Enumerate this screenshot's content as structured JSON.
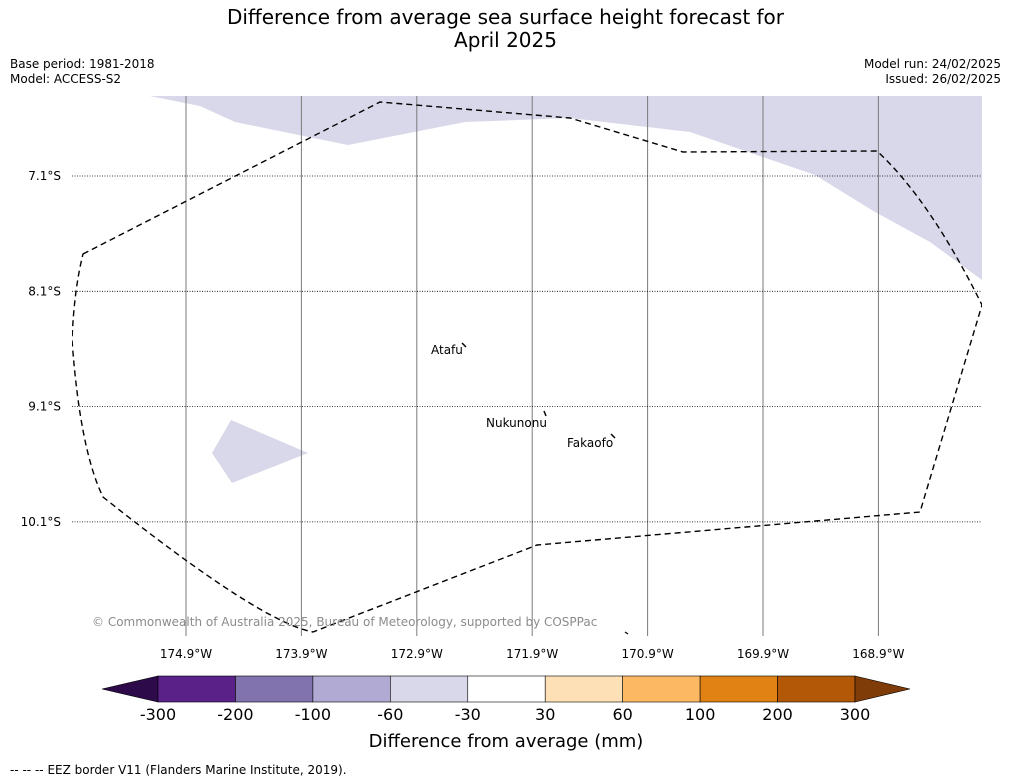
{
  "title": {
    "line1": "Difference from average sea surface height forecast for",
    "line2": "April 2025"
  },
  "meta": {
    "base_period": "Base period: 1981-2018",
    "model": "Model: ACCESS-S2",
    "model_run": "Model run: 24/02/2025",
    "issued": "Issued: 26/02/2025"
  },
  "map": {
    "latitudes": [
      {
        "label": "7.1°S",
        "value": -7.1
      },
      {
        "label": "8.1°S",
        "value": -8.1
      },
      {
        "label": "9.1°S",
        "value": -9.1
      },
      {
        "label": "10.1°S",
        "value": -10.1
      }
    ],
    "longitudes": [
      {
        "label": "174.9°W",
        "value": -174.9
      },
      {
        "label": "173.9°W",
        "value": -173.9
      },
      {
        "label": "172.9°W",
        "value": -172.9
      },
      {
        "label": "171.9°W",
        "value": -171.9
      },
      {
        "label": "170.9°W",
        "value": -170.9
      },
      {
        "label": "169.9°W",
        "value": -169.9
      },
      {
        "label": "168.9°W",
        "value": -168.9
      }
    ],
    "places": [
      {
        "name": "Atafu"
      },
      {
        "name": "Nukunonu"
      },
      {
        "name": "Fakaofo"
      }
    ],
    "copyright": "© Commonwealth of Australia 2025, Bureau of Meteorology, supported by COSPPac",
    "anomaly_fill_color": "#d8d8ea"
  },
  "colorbar": {
    "title": "Difference from average (mm)",
    "ticks": [
      "-300",
      "-200",
      "-100",
      "-60",
      "-30",
      "30",
      "60",
      "100",
      "200",
      "300"
    ],
    "colors": [
      "#2d0a4a",
      "#5a2189",
      "#8173ad",
      "#b1aad2",
      "#d8d8ea",
      "#ffffff",
      "#fee0b6",
      "#fdb863",
      "#e08214",
      "#b35806",
      "#7f3b08"
    ]
  },
  "footer": {
    "legend_symbol": "-- -- --",
    "legend_text": "EEZ border V11 (Flanders Marine Institute, 2019)."
  }
}
